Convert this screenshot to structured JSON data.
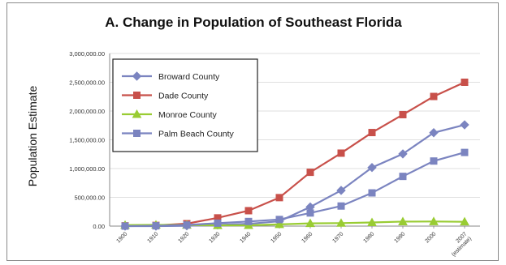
{
  "chart_data": {
    "type": "line",
    "title": "A. Change in Population of Southeast Florida",
    "xlabel": "",
    "ylabel": "Population Estimate",
    "categories": [
      "1900",
      "1910",
      "1920",
      "1930",
      "1940",
      "1950",
      "1960",
      "1970",
      "1980",
      "1990",
      "2000",
      "2007 (estimate)"
    ],
    "ylim": [
      0,
      3000000
    ],
    "ytick_labels": [
      "0.00",
      "500,000.00",
      "1,000,000.00",
      "1,500,000.00",
      "2,000,000.00",
      "2,500,000.00",
      "3,000,000.00"
    ],
    "grid": true,
    "legend_position": "top-left",
    "series": [
      {
        "name": "Broward County",
        "color": "#7b84c0",
        "marker": "diamond",
        "values": [
          0,
          0,
          5000,
          20000,
          40000,
          84000,
          333000,
          620000,
          1018000,
          1255000,
          1623000,
          1760000
        ]
      },
      {
        "name": "Dade County",
        "color": "#c8504a",
        "marker": "square",
        "values": [
          5000,
          12000,
          42000,
          143000,
          268000,
          495000,
          935000,
          1268000,
          1626000,
          1937000,
          2253000,
          2500000
        ]
      },
      {
        "name": "Monroe County",
        "color": "#99cc33",
        "marker": "triangle",
        "values": [
          18000,
          21000,
          19000,
          13000,
          14000,
          30000,
          48000,
          52000,
          63000,
          78000,
          80000,
          75000
        ]
      },
      {
        "name": "Palm Beach County",
        "color": "#7b84c0",
        "marker": "square",
        "values": [
          0,
          5000,
          19000,
          51000,
          80000,
          115000,
          228000,
          349000,
          577000,
          864000,
          1131000,
          1280000
        ]
      }
    ]
  }
}
